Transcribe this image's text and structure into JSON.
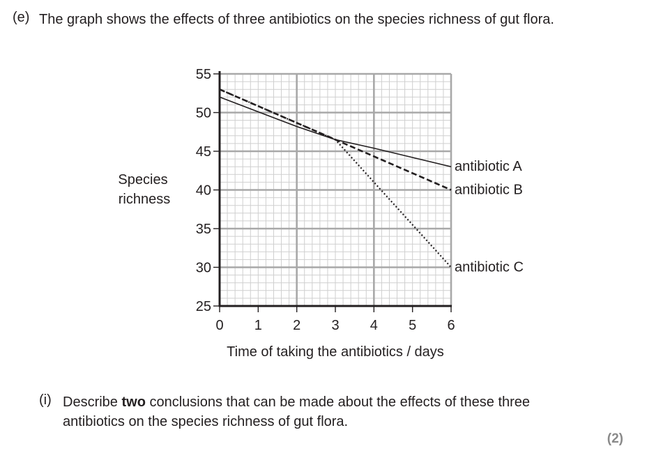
{
  "question_e": {
    "label": "(e)",
    "text": "The graph shows the effects of three antibiotics on the species richness of gut flora."
  },
  "question_i": {
    "label": "(i)",
    "text_before": "Describe ",
    "text_bold": "two",
    "text_after": " conclusions that can be made about the effects of these three antibiotics on the species richness of gut flora.",
    "marks": "(2)"
  },
  "chart_data": {
    "type": "line",
    "ylabel": [
      "Species",
      "richness"
    ],
    "xlabel": "Time of taking the antibiotics / days",
    "xlim": [
      0,
      6
    ],
    "ylim": [
      25,
      55
    ],
    "xticks": [
      "0",
      "1",
      "2",
      "3",
      "4",
      "5",
      "6"
    ],
    "yticks": [
      "55",
      "50",
      "45",
      "40",
      "35",
      "30",
      "25"
    ],
    "grid": true,
    "series": [
      {
        "name": "antibiotic A",
        "style": "solid",
        "x": [
          0,
          2,
          3,
          4,
          6
        ],
        "y": [
          52,
          48.2,
          46.5,
          45.4,
          43
        ]
      },
      {
        "name": "antibiotic B",
        "style": "dashed",
        "x": [
          0,
          3,
          6
        ],
        "y": [
          53,
          46.5,
          40
        ]
      },
      {
        "name": "antibiotic C",
        "style": "dotted",
        "x": [
          0,
          3,
          6
        ],
        "y": [
          53,
          46.5,
          30
        ]
      }
    ]
  }
}
